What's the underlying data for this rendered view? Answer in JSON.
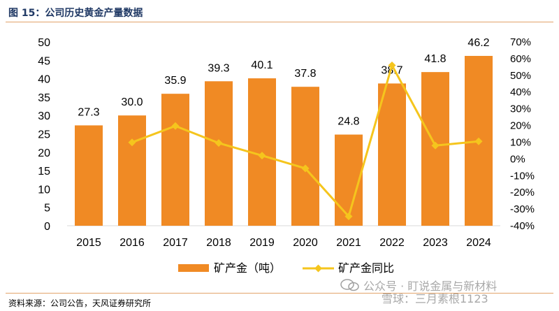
{
  "figure_title": "图 15：公司历史黄金产量数据",
  "source": "资料来源：公司公告，天风证券研究所",
  "watermark": {
    "line1": "公众号 · 盯说金属与新材料",
    "line2": "雪球：三月素根1123"
  },
  "colors": {
    "bar": "#f08a24",
    "line": "#f5c51d",
    "title": "#1f3864",
    "rule": "#e2a36a"
  },
  "chart_data": {
    "type": "bar",
    "categories": [
      "2015",
      "2016",
      "2017",
      "2018",
      "2019",
      "2020",
      "2021",
      "2022",
      "2023",
      "2024"
    ],
    "series": [
      {
        "name": "矿产金（吨）",
        "kind": "bar",
        "axis": "left",
        "values": [
          27.3,
          30.0,
          35.9,
          39.3,
          40.1,
          37.8,
          24.8,
          38.7,
          41.8,
          46.2
        ],
        "labels": [
          "27.3",
          "30.0",
          "35.9",
          "39.3",
          "40.1",
          "37.8",
          "24.8",
          "38.7",
          "41.8",
          "46.2"
        ]
      },
      {
        "name": "矿产金同比",
        "kind": "line",
        "axis": "right",
        "values": [
          null,
          9.9,
          19.7,
          9.5,
          2.0,
          -5.7,
          -34.4,
          56.0,
          8.0,
          10.5
        ]
      }
    ],
    "y_left": {
      "lim": [
        0,
        50
      ],
      "ticks": [
        "0",
        "5",
        "10",
        "15",
        "20",
        "25",
        "30",
        "35",
        "40",
        "45",
        "50"
      ]
    },
    "y_right": {
      "lim": [
        -40,
        70
      ],
      "ticks": [
        "-40%",
        "-30%",
        "-20%",
        "-10%",
        "0%",
        "10%",
        "20%",
        "30%",
        "40%",
        "50%",
        "60%",
        "70%"
      ]
    },
    "grid": false,
    "legend": "bottom"
  }
}
